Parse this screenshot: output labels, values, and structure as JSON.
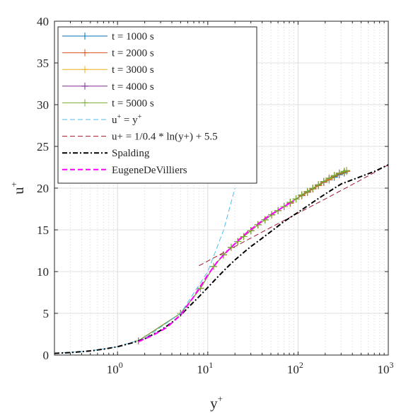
{
  "chart_data": {
    "type": "line",
    "xlabel": "y+",
    "ylabel": "u+",
    "xscale": "log",
    "xlim": [
      0.2,
      1000
    ],
    "ylim": [
      0,
      40
    ],
    "x_ticks": [
      1,
      10,
      100,
      1000
    ],
    "x_tick_labels": [
      {
        "base": "10",
        "exp": "0"
      },
      {
        "base": "10",
        "exp": "1"
      },
      {
        "base": "10",
        "exp": "2"
      },
      {
        "base": "10",
        "exp": "3"
      }
    ],
    "y_ticks": [
      0,
      5,
      10,
      15,
      20,
      25,
      30,
      35,
      40
    ],
    "y_tick_labels": [
      "0",
      "5",
      "10",
      "15",
      "20",
      "25",
      "30",
      "35",
      "40"
    ],
    "grid": true,
    "minor_grid_x": true,
    "legend_position": "top-left",
    "series": [
      {
        "name": "t = 1000 s",
        "color": "#0072BD",
        "style": "solid",
        "marker": "+",
        "x": [
          1.7,
          5.0,
          8.3,
          11.6,
          14.9,
          18.2,
          21.5,
          25.0,
          30.0,
          36.0,
          43.0,
          51.0,
          60.0,
          70.0,
          82.0,
          95.0,
          110.0,
          127.0,
          146.0,
          168.0,
          193.0,
          221.0,
          252.0,
          287.0,
          325.0
        ],
        "y": [
          1.7,
          5.0,
          8.0,
          10.6,
          12.0,
          12.9,
          13.6,
          14.2,
          14.9,
          15.6,
          16.2,
          16.8,
          17.3,
          17.8,
          18.2,
          18.7,
          19.1,
          19.5,
          19.9,
          20.3,
          20.7,
          21.0,
          21.3,
          21.6,
          21.8
        ]
      },
      {
        "name": "t = 2000 s",
        "color": "#D95319",
        "style": "solid",
        "marker": "+",
        "x": [
          1.7,
          5.0,
          8.3,
          11.6,
          14.9,
          18.2,
          21.5,
          25.0,
          30.0,
          36.0,
          43.0,
          51.0,
          60.0,
          70.0,
          82.0,
          95.0,
          110.0,
          127.0,
          146.0,
          168.0,
          193.0,
          221.0,
          252.0,
          287.0,
          325.0,
          345.0
        ],
        "y": [
          1.7,
          5.0,
          8.0,
          10.6,
          12.0,
          12.9,
          13.6,
          14.2,
          14.9,
          15.6,
          16.2,
          16.8,
          17.3,
          17.8,
          18.2,
          18.7,
          19.1,
          19.5,
          19.9,
          20.3,
          20.7,
          21.0,
          21.4,
          21.7,
          21.9,
          22.0
        ]
      },
      {
        "name": "t = 3000 s",
        "color": "#EDB120",
        "style": "solid",
        "marker": "+",
        "x": [
          1.7,
          5.0,
          8.3,
          11.6,
          14.9,
          18.2,
          21.5,
          25.0,
          30.0,
          36.0,
          43.0,
          51.0,
          60.0,
          70.0,
          82.0,
          95.0,
          110.0,
          127.0,
          146.0,
          168.0,
          193.0,
          221.0,
          252.0,
          287.0,
          325.0,
          345.0
        ],
        "y": [
          1.7,
          5.0,
          8.0,
          10.6,
          12.0,
          12.9,
          13.6,
          14.2,
          14.9,
          15.6,
          16.2,
          16.8,
          17.3,
          17.8,
          18.3,
          18.7,
          19.2,
          19.6,
          20.0,
          20.4,
          20.8,
          21.1,
          21.5,
          21.8,
          22.0,
          22.1
        ]
      },
      {
        "name": "t = 4000 s",
        "color": "#7E2F8E",
        "style": "solid",
        "marker": "+",
        "x": [
          1.7,
          5.0,
          8.3,
          11.6,
          14.9,
          18.2,
          21.5,
          25.0,
          30.0,
          36.0,
          43.0,
          51.0,
          60.0,
          70.0,
          82.0,
          95.0,
          110.0,
          127.0,
          146.0,
          168.0,
          193.0,
          221.0,
          252.0,
          287.0,
          325.0,
          345.0
        ],
        "y": [
          1.7,
          5.0,
          8.0,
          10.6,
          12.0,
          12.9,
          13.6,
          14.2,
          14.9,
          15.6,
          16.2,
          16.8,
          17.3,
          17.8,
          18.3,
          18.7,
          19.2,
          19.6,
          20.0,
          20.4,
          20.8,
          21.2,
          21.5,
          21.8,
          22.0,
          22.1
        ]
      },
      {
        "name": "t = 5000 s",
        "color": "#77AC30",
        "style": "solid",
        "marker": "+",
        "x": [
          1.7,
          5.0,
          8.3,
          11.6,
          14.9,
          18.2,
          21.5,
          25.0,
          30.0,
          36.0,
          43.0,
          51.0,
          60.0,
          70.0,
          82.0,
          95.0,
          110.0,
          127.0,
          146.0,
          168.0,
          193.0,
          221.0,
          252.0,
          287.0,
          325.0,
          345.0
        ],
        "y": [
          1.7,
          5.0,
          8.0,
          10.6,
          12.0,
          12.9,
          13.6,
          14.2,
          14.9,
          15.6,
          16.2,
          16.8,
          17.3,
          17.8,
          18.3,
          18.7,
          19.2,
          19.6,
          20.0,
          20.4,
          20.8,
          21.2,
          21.5,
          21.8,
          22.0,
          22.1
        ]
      },
      {
        "name": "u+ = y+",
        "color": "#4DBEEE",
        "style": "dashed",
        "marker": "none",
        "x": [
          0.2,
          0.5,
          1,
          2,
          5,
          10,
          15,
          20
        ],
        "y": [
          0.2,
          0.5,
          1,
          2,
          5,
          10,
          15,
          20
        ]
      },
      {
        "name": "u+ = 1/0.4 * ln(y+) + 5.5",
        "color": "#A2142F",
        "style": "dashed",
        "marker": "none",
        "x": [
          8,
          20,
          50,
          100,
          200,
          500,
          1000
        ],
        "y": [
          10.7,
          13.0,
          15.3,
          17.0,
          18.7,
          21.0,
          22.8
        ]
      },
      {
        "name": "Spalding",
        "color": "#000000",
        "style": "dashdot",
        "marker": "none",
        "x": [
          0.2,
          0.3,
          0.5,
          0.7,
          1.0,
          1.5,
          2.0,
          3.0,
          4.0,
          5.0,
          6.0,
          8.0,
          10.0,
          13.0,
          16.0,
          20.0,
          25.0,
          30.0,
          40.0,
          50.0,
          70.0,
          100.0,
          150.0,
          200.0,
          300.0,
          500.0,
          700.0,
          1000.0
        ],
        "y": [
          0.2,
          0.3,
          0.5,
          0.7,
          1.0,
          1.5,
          1.95,
          2.95,
          3.9,
          4.8,
          5.65,
          7.0,
          8.1,
          9.4,
          10.4,
          11.4,
          12.3,
          13.0,
          14.0,
          14.8,
          16.0,
          17.1,
          18.4,
          19.3,
          20.5,
          21.4,
          22.0,
          22.8
        ]
      },
      {
        "name": "EugeneDeVilliers",
        "color": "#FF00FF",
        "style": "dashed",
        "marker": "none",
        "x": [
          1.7,
          2.5,
          3.5,
          5.0,
          7.0,
          10.0,
          13.0,
          17.0,
          22.0,
          28.0,
          35.0,
          45.0,
          55.0,
          70.0,
          90.0
        ],
        "y": [
          1.6,
          2.4,
          3.3,
          4.8,
          7.0,
          9.6,
          11.3,
          12.6,
          13.8,
          14.8,
          15.6,
          16.5,
          17.1,
          17.8,
          18.5
        ]
      }
    ]
  }
}
